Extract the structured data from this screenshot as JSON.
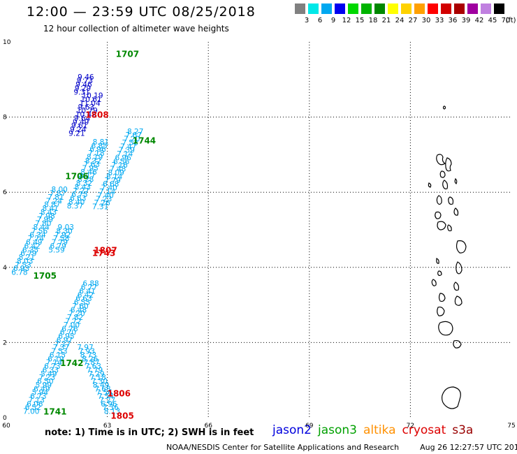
{
  "header": {
    "title": "12:00 — 23:59 UTC 08/25/2018",
    "subtitle": "12 hour collection of altimeter wave heights"
  },
  "color_scale": {
    "unit_label": "(ft)",
    "bins": [
      {
        "label": "3",
        "color": "#808080"
      },
      {
        "label": "6",
        "color": "#00e8e8"
      },
      {
        "label": "9",
        "color": "#00a8f0"
      },
      {
        "label": "12",
        "color": "#0000f0"
      },
      {
        "label": "15",
        "color": "#00d800"
      },
      {
        "label": "18",
        "color": "#00b400"
      },
      {
        "label": "21",
        "color": "#008800"
      },
      {
        "label": "24",
        "color": "#ffff00"
      },
      {
        "label": "27",
        "color": "#ffd200"
      },
      {
        "label": "30",
        "color": "#ffa000"
      },
      {
        "label": "33",
        "color": "#ff0000"
      },
      {
        "label": "36",
        "color": "#d20000"
      },
      {
        "label": "39",
        "color": "#aa0000"
      },
      {
        "label": "42",
        "color": "#a000a0"
      },
      {
        "label": "45",
        "color": "#c080e0"
      },
      {
        "label": "70",
        "color": "#000000"
      }
    ]
  },
  "axes": {
    "x_ticks": [
      "60",
      "63",
      "66",
      "69",
      "72",
      "75"
    ],
    "y_ticks": [
      "0",
      "2",
      "4",
      "6",
      "8",
      "10"
    ],
    "grid": "dotted"
  },
  "pass_labels": [
    {
      "text": "1707",
      "lon": 63.25,
      "lat": 9.6,
      "color": "#008800"
    },
    {
      "text": "1808",
      "lon": 62.35,
      "lat": 7.98,
      "color": "#dd0000"
    },
    {
      "text": "1744",
      "lon": 63.75,
      "lat": 7.3,
      "color": "#008800"
    },
    {
      "text": "1706",
      "lon": 61.75,
      "lat": 6.35,
      "color": "#008800"
    },
    {
      "text": "1807",
      "lon": 62.6,
      "lat": 4.38,
      "color": "#dd0000"
    },
    {
      "text": "1743",
      "lon": 62.55,
      "lat": 4.3,
      "color": "#dd0000"
    },
    {
      "text": "1705",
      "lon": 60.8,
      "lat": 3.7,
      "color": "#008800"
    },
    {
      "text": "1742",
      "lon": 61.6,
      "lat": 1.38,
      "color": "#008800"
    },
    {
      "text": "1806",
      "lon": 63.0,
      "lat": 0.57,
      "color": "#dd0000"
    },
    {
      "text": "1741",
      "lon": 61.1,
      "lat": 0.08,
      "color": "#008800"
    },
    {
      "text": "1805",
      "lon": 63.1,
      "lat": -0.03,
      "color": "#dd0000"
    }
  ],
  "tracks": [
    {
      "id": "cyan-left",
      "color": "#00a8f0",
      "lon_start": 60.5,
      "lat_start": 0.1,
      "lon_step": 0.052,
      "values": [
        "7.00",
        "6.52",
        "6.06",
        "7.13",
        "6.73",
        "5.94",
        "6.49",
        "5.99",
        "6.50",
        "7.23",
        "5.49",
        "6.33",
        "6.73",
        "7.14",
        "6.19",
        "6.15",
        "7.53",
        "7.37",
        "7.17",
        "6.97",
        "6.95",
        "6.70",
        "6.76",
        "7.00",
        "7.72",
        "7.82",
        "7.20",
        "6.48",
        "7.60",
        "6.55",
        "6.63",
        "6.42",
        "6.41",
        "6.77",
        "6.88"
      ]
    },
    {
      "id": "cyan-mid-lower",
      "color": "#00a8f0",
      "lon_start": 62.9,
      "lat_start": 0.1,
      "lon_step": -0.047,
      "values": [
        "8.13",
        "7.36",
        "6.96",
        "7.27",
        "7.54",
        "7.56",
        "7.68",
        "8.49",
        "7.30",
        "7.18",
        "7.29",
        "7.79",
        "7.63",
        "7.87",
        "8.26",
        "8.73",
        "7.93",
        "7.97"
      ]
    },
    {
      "id": "cyan-mid-upper",
      "color": "#00a8f0",
      "lon_start": 61.25,
      "lat_start": 4.4,
      "lon_step": 0.046,
      "values": [
        "5.59",
        "6.79",
        "7.79",
        "7.58",
        "7.92",
        "8.30",
        "9.03"
      ]
    },
    {
      "id": "cyan-right",
      "color": "#00a8f0",
      "lon_start": 62.55,
      "lat_start": 5.55,
      "lon_step": 0.052,
      "values": [
        "7.31",
        "7.26",
        "7.23",
        "7.40",
        "7.14",
        "7.40",
        "6.68",
        "7.79",
        "8.14",
        "8.09",
        "7.48",
        "7.16",
        "6.56",
        "6.96",
        "7.14",
        "7.39",
        "7.47",
        "7.53",
        "7.20",
        "7.67",
        "8.27"
      ]
    },
    {
      "id": "cyan-far-left",
      "color": "#00a8f0",
      "lon_start": 60.15,
      "lat_start": 3.8,
      "lon_step": 0.054,
      "values": [
        "6.78",
        "6.93",
        "7.53",
        "8.03",
        "8.21",
        "6.79",
        "6.35",
        "6.42",
        "6.49",
        "7.74",
        "6.34",
        "7.56",
        "8.44",
        "7.80",
        "7.99",
        "7.98",
        "8.43",
        "8.41",
        "8.87",
        "7.24",
        "7.81",
        "7.87",
        "8.00"
      ]
    },
    {
      "id": "cyan-upper-mid",
      "color": "#00a8f0",
      "lon_start": 61.8,
      "lat_start": 5.57,
      "lon_step": 0.045,
      "values": [
        "8.37",
        "8.40",
        "6.63",
        "6.75",
        "7.27",
        "8.43",
        "8.32",
        "8.28",
        "8.17",
        "8.46",
        "7.95",
        "7.63",
        "8.32",
        "8.19",
        "7.18",
        "6.96",
        "6.85",
        "8.81"
      ]
    },
    {
      "id": "navy",
      "color": "#0000c8",
      "lon_start": 61.85,
      "lat_start": 7.5,
      "lon_step": 0.04,
      "values": [
        "9.21",
        "9.24",
        "9.61",
        "9.49",
        "9.64",
        "10.42",
        "10.79",
        "9.63",
        "11.04",
        "10.61",
        "10.19"
      ]
    },
    {
      "id": "navy-b",
      "color": "#0000c8",
      "lon_start": 62.0,
      "lat_start": 8.6,
      "lon_step": 0.03,
      "values": [
        "9.31",
        "9.29",
        "9.46",
        "9.73",
        "9.46"
      ]
    }
  ],
  "footer": {
    "note": "note: 1) Time is in UTC; 2) SWH is in feet",
    "satellites": [
      {
        "name": "jason2",
        "color": "#0000dd"
      },
      {
        "name": "jason3",
        "color": "#00a000"
      },
      {
        "name": "altika",
        "color": "#ff9000"
      },
      {
        "name": "cryosat",
        "color": "#dd0000"
      },
      {
        "name": "s3a",
        "color": "#990000"
      }
    ],
    "credit": "NOAA/NESDIS Center for Satellite Applications and Research",
    "timestamp": "Aug 26 12:27:57 UTC 2018"
  }
}
